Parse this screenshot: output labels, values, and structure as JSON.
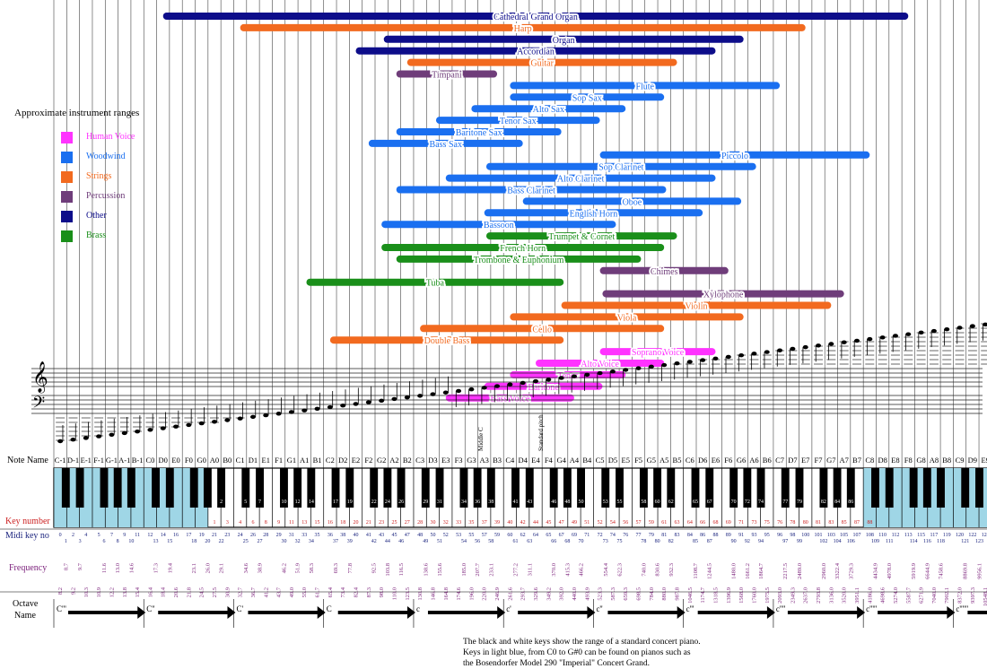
{
  "legend": {
    "title": "Approximate instrument ranges",
    "items": [
      {
        "label": "Human Voice",
        "color": "#ff33ff"
      },
      {
        "label": "Woodwind",
        "color": "#1a6ff0"
      },
      {
        "label": "Strings",
        "color": "#f26a1f"
      },
      {
        "label": "Percussion",
        "color": "#6f3d7a"
      },
      {
        "label": "Other",
        "color": "#0d0d8a"
      },
      {
        "label": "Brass",
        "color": "#1a8f1a"
      }
    ]
  },
  "colors": {
    "voice": "#ff33ff",
    "woodwind": "#1a6ff0",
    "strings": "#f26a1f",
    "percussion": "#6f3d7a",
    "other": "#0d0d8a",
    "brass": "#1a8f1a",
    "light_key": "#9fd6e6",
    "key_number": "#cc2222",
    "frequency": "#7a1f7a",
    "midi": "#1a237e"
  },
  "chart_data": {
    "type": "range-bars",
    "title": "Approximate instrument ranges",
    "instruments": [
      {
        "name": "Cathedral Grand Organ",
        "group": "other",
        "segments": [
          [
            -6,
            93
          ]
        ]
      },
      {
        "name": "Harp",
        "group": "strings",
        "segments": [
          [
            4,
            80
          ]
        ]
      },
      {
        "name": "Organ",
        "group": "other",
        "segments": [
          [
            24,
            72
          ]
        ]
      },
      {
        "name": "Accordian",
        "group": "other",
        "segments": [
          [
            20,
            68
          ]
        ]
      },
      {
        "name": "Guitar",
        "group": "strings",
        "segments": [
          [
            27,
            63
          ]
        ]
      },
      {
        "name": "Timpani",
        "group": "percussion",
        "segments": [
          [
            26,
            39
          ]
        ]
      },
      {
        "name": "Flute",
        "group": "woodwind",
        "segments": [
          [
            40,
            76
          ]
        ]
      },
      {
        "name": "Sop Sax",
        "group": "woodwind",
        "segments": [
          [
            40,
            61
          ]
        ]
      },
      {
        "name": "Alto Sax",
        "group": "woodwind",
        "segments": [
          [
            35,
            56
          ]
        ]
      },
      {
        "name": "Tenor Sax",
        "group": "woodwind",
        "segments": [
          [
            31,
            52
          ]
        ]
      },
      {
        "name": "Baritone Sax",
        "group": "woodwind",
        "segments": [
          [
            26,
            47
          ]
        ]
      },
      {
        "name": "Bass Sax",
        "group": "woodwind",
        "segments": [
          [
            21,
            42
          ]
        ]
      },
      {
        "name": "Piccolo",
        "group": "woodwind",
        "segments": [
          [
            52,
            88
          ]
        ]
      },
      {
        "name": "Sop Clarinet",
        "group": "woodwind",
        "segments": [
          [
            38,
            74
          ]
        ]
      },
      {
        "name": "Alto Clarinet",
        "group": "woodwind",
        "segments": [
          [
            32,
            68
          ]
        ]
      },
      {
        "name": "Bass Clarinet",
        "group": "woodwind",
        "segments": [
          [
            26,
            62
          ]
        ]
      },
      {
        "name": "Oboe",
        "group": "woodwind",
        "segments": [
          [
            42,
            71
          ]
        ]
      },
      {
        "name": "English Horn",
        "group": "woodwind",
        "segments": [
          [
            37,
            66
          ]
        ]
      },
      {
        "name": "Bassoon",
        "group": "woodwind",
        "segments": [
          [
            23,
            55
          ]
        ]
      },
      {
        "name": "Trumpet & Cornet",
        "group": "brass",
        "segments": [
          [
            38,
            63
          ]
        ]
      },
      {
        "name": "French Horn",
        "group": "brass",
        "segments": [
          [
            23,
            61
          ]
        ]
      },
      {
        "name": "Trombone & Euphonium",
        "group": "brass",
        "segments": [
          [
            26,
            58
          ]
        ]
      },
      {
        "name": "Chimes",
        "group": "percussion",
        "segments": [
          [
            52,
            69
          ]
        ]
      },
      {
        "name": "Tuba",
        "group": "brass",
        "segments": [
          [
            14,
            48
          ]
        ]
      },
      {
        "name": "Xylophone",
        "group": "percussion",
        "segments": [
          [
            53,
            85
          ]
        ]
      },
      {
        "name": "Violin",
        "group": "strings",
        "segments": [
          [
            47,
            83
          ]
        ]
      },
      {
        "name": "Viola",
        "group": "strings",
        "segments": [
          [
            40,
            72
          ]
        ]
      },
      {
        "name": "Cello",
        "group": "strings",
        "segments": [
          [
            28,
            61
          ]
        ]
      },
      {
        "name": "Double Bass",
        "group": "strings",
        "segments": [
          [
            16,
            48
          ]
        ]
      },
      {
        "name": "Soprano Voice",
        "group": "voice",
        "segments": [
          [
            52,
            68
          ]
        ]
      },
      {
        "name": "Alto Voice",
        "group": "voice",
        "segments": [
          [
            44,
            61
          ]
        ]
      },
      {
        "name": "Tenor",
        "group": "voice",
        "segments": [
          [
            40,
            56
          ]
        ]
      },
      {
        "name": "Baritone",
        "group": "voice",
        "segments": [
          [
            37,
            53
          ]
        ]
      },
      {
        "name": "Bass Voice",
        "group": "voice",
        "segments": [
          [
            32,
            49
          ]
        ]
      }
    ],
    "rows": {
      "note_name_label": "Note Name",
      "key_number_label": "Key number",
      "midi_label": "Midi key no",
      "frequency_label": "Frequency",
      "octave_label_1": "Octave",
      "octave_label_2": "Name",
      "note_letters": [
        "C",
        "D",
        "E",
        "F",
        "G",
        "A",
        "B"
      ],
      "octave_names": [
        "C''''",
        "C'''",
        "C''",
        "C'",
        "C",
        "c",
        "c'",
        "c''",
        "c'''",
        "c''''",
        "c'''''",
        "c''''''"
      ],
      "keyboard_range_low": -8,
      "keyboard_range_high": 88,
      "light_key_note": "Keys in light blue, from C0 to G#0 can be found on pianos such as",
      "middle_c_label": "Middle C",
      "standard_pitch_label": "Standard pitch"
    }
  },
  "caption": {
    "line1": "The black and white keys show the range of a standard concert piano.",
    "line2": "Keys in light blue, from C0 to G#0 can be found on pianos such as",
    "line3": "the Bosendorfer Model 290 \"Imperial\" Concert Grand."
  }
}
